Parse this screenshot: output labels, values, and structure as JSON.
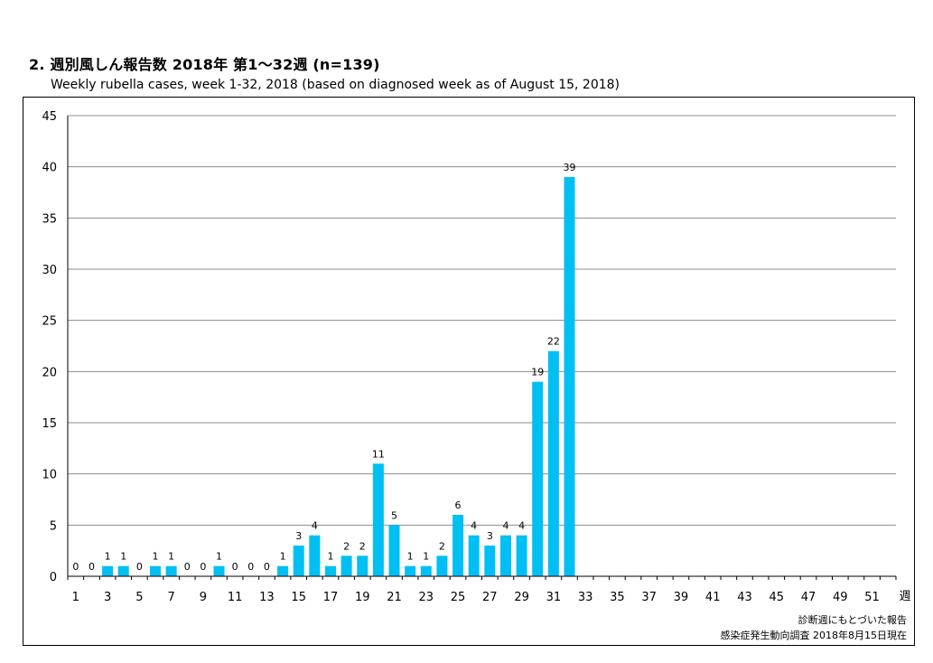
{
  "header": {
    "title": "2. 週別風しん報告数  2018年 第1～32週 (n=139)",
    "subtitle": "Weekly rubella cases, week 1-32, 2018 (based on diagnosed week as of August 15, 2018)"
  },
  "chart_data": {
    "type": "bar",
    "title": "2. 週別風しん報告数  2018年 第1～32週 (n=139)",
    "subtitle": "Weekly rubella cases, week 1-32, 2018 (based on diagnosed week as of August 15, 2018)",
    "xlabel": "週",
    "ylabel": "",
    "x_range": [
      1,
      52
    ],
    "x_tick_labels": [
      1,
      3,
      5,
      7,
      9,
      11,
      13,
      15,
      17,
      19,
      21,
      23,
      25,
      27,
      29,
      31,
      33,
      35,
      37,
      39,
      41,
      43,
      45,
      47,
      49,
      51
    ],
    "ylim": [
      0,
      45
    ],
    "y_tick_step": 5,
    "grid": true,
    "data_labels": true,
    "weeks": [
      1,
      2,
      3,
      4,
      5,
      6,
      7,
      8,
      9,
      10,
      11,
      12,
      13,
      14,
      15,
      16,
      17,
      18,
      19,
      20,
      21,
      22,
      23,
      24,
      25,
      26,
      27,
      28,
      29,
      30,
      31,
      32
    ],
    "values": [
      0,
      0,
      1,
      1,
      0,
      1,
      1,
      0,
      0,
      1,
      0,
      0,
      0,
      1,
      3,
      4,
      1,
      2,
      2,
      11,
      5,
      1,
      1,
      2,
      6,
      4,
      3,
      4,
      4,
      19,
      22,
      39
    ],
    "series_name": "Weekly rubella cases",
    "colors": {
      "bar": "#00BFF3",
      "grid": "#8C8C8C",
      "axis": "#000000"
    }
  },
  "notes": {
    "line1": "診断週にもとづいた報告",
    "line2": "感染症発生動向調査 2018年8月15日現在"
  }
}
